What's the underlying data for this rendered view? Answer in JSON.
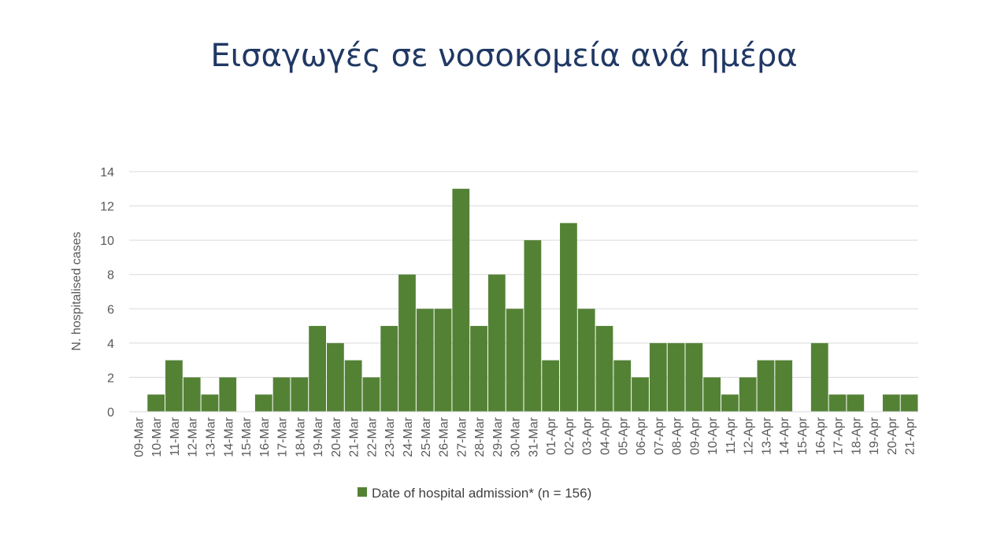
{
  "chart_data": {
    "type": "bar",
    "title": "Εισαγωγές σε νοσοκομεία ανά ημέρα",
    "ylabel": "N. hospitalised cases",
    "xlabel": "",
    "ylim": [
      0,
      14
    ],
    "yticks": [
      0,
      2,
      4,
      6,
      8,
      10,
      12,
      14
    ],
    "grid": true,
    "legend_position": "bottom",
    "bar_color": "#548235",
    "categories": [
      "09-Mar",
      "10-Mar",
      "11-Mar",
      "12-Mar",
      "13-Mar",
      "14-Mar",
      "15-Mar",
      "16-Mar",
      "17-Mar",
      "18-Mar",
      "19-Mar",
      "20-Mar",
      "21-Mar",
      "22-Mar",
      "23-Mar",
      "24-Mar",
      "25-Mar",
      "26-Mar",
      "27-Mar",
      "28-Mar",
      "29-Mar",
      "30-Mar",
      "31-Mar",
      "01-Apr",
      "02-Apr",
      "03-Apr",
      "04-Apr",
      "05-Apr",
      "06-Apr",
      "07-Apr",
      "08-Apr",
      "09-Apr",
      "10-Apr",
      "11-Apr",
      "12-Apr",
      "13-Apr",
      "14-Apr",
      "15-Apr",
      "16-Apr",
      "17-Apr",
      "18-Apr",
      "19-Apr",
      "20-Apr",
      "21-Apr"
    ],
    "series": [
      {
        "name": "Date of hospital admission* (n = 156)",
        "values": [
          0,
          1,
          3,
          2,
          1,
          2,
          0,
          1,
          2,
          2,
          5,
          4,
          3,
          2,
          5,
          8,
          6,
          6,
          13,
          5,
          8,
          6,
          10,
          3,
          11,
          6,
          5,
          3,
          2,
          4,
          4,
          4,
          2,
          1,
          2,
          3,
          3,
          0,
          4,
          1,
          1,
          0,
          1,
          1
        ]
      }
    ]
  }
}
